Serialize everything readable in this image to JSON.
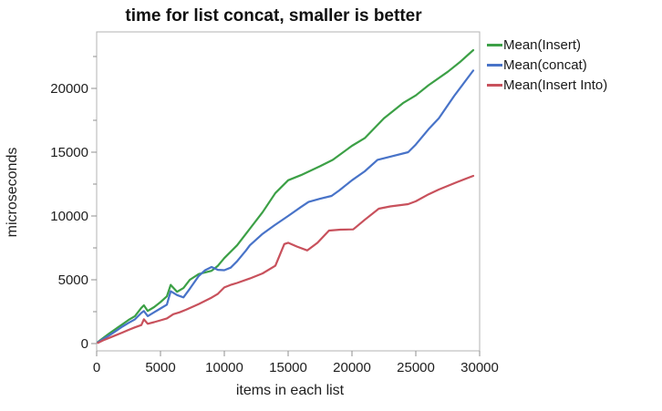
{
  "window": {
    "background": "#ffffff"
  },
  "chart_data": {
    "type": "line",
    "title": "time for list concat, smaller is better",
    "xlabel": "items in each list",
    "ylabel": "microseconds",
    "xlim": [
      0,
      30000
    ],
    "ylim": [
      0,
      24400
    ],
    "x_major_ticks": [
      0,
      5000,
      10000,
      15000,
      20000,
      25000,
      30000
    ],
    "y_major_ticks": [
      0,
      5000,
      10000,
      15000,
      20000
    ],
    "y_minor_ticks": [
      2500,
      7500,
      12500,
      17500,
      22500
    ],
    "grid": "off",
    "legend_position": "top-right-outside",
    "frame_color": "#b3b3b3",
    "tick_color": "#8f8f8f",
    "text_color": "#1e1e1e",
    "series": [
      {
        "name": "Mean(Insert)",
        "color": "#3CA046",
        "points": [
          [
            100,
            120
          ],
          [
            500,
            430
          ],
          [
            1000,
            800
          ],
          [
            1500,
            1150
          ],
          [
            2000,
            1500
          ],
          [
            2500,
            1850
          ],
          [
            3000,
            2150
          ],
          [
            3500,
            2800
          ],
          [
            3700,
            3000
          ],
          [
            4000,
            2560
          ],
          [
            4500,
            2860
          ],
          [
            5000,
            3250
          ],
          [
            5500,
            3700
          ],
          [
            5800,
            4600
          ],
          [
            6300,
            4060
          ],
          [
            6800,
            4350
          ],
          [
            7300,
            5000
          ],
          [
            8000,
            5450
          ],
          [
            9000,
            5700
          ],
          [
            9500,
            6100
          ],
          [
            10000,
            6700
          ],
          [
            11000,
            7700
          ],
          [
            12000,
            9000
          ],
          [
            13000,
            10300
          ],
          [
            14000,
            11800
          ],
          [
            15000,
            12800
          ],
          [
            16000,
            13200
          ],
          [
            17500,
            13900
          ],
          [
            18500,
            14400
          ],
          [
            20000,
            15500
          ],
          [
            21000,
            16100
          ],
          [
            22500,
            17650
          ],
          [
            24000,
            18850
          ],
          [
            25000,
            19450
          ],
          [
            26000,
            20250
          ],
          [
            27500,
            21300
          ],
          [
            28500,
            22100
          ],
          [
            29500,
            23000
          ]
        ]
      },
      {
        "name": "Mean(concat)",
        "color": "#4873C8",
        "points": [
          [
            100,
            100
          ],
          [
            500,
            350
          ],
          [
            1000,
            650
          ],
          [
            1500,
            980
          ],
          [
            2000,
            1320
          ],
          [
            2500,
            1620
          ],
          [
            3000,
            1900
          ],
          [
            3500,
            2400
          ],
          [
            3700,
            2550
          ],
          [
            4000,
            2150
          ],
          [
            4500,
            2450
          ],
          [
            5000,
            2750
          ],
          [
            5500,
            3050
          ],
          [
            5800,
            4100
          ],
          [
            6300,
            3800
          ],
          [
            6800,
            3620
          ],
          [
            7300,
            4300
          ],
          [
            8000,
            5300
          ],
          [
            8500,
            5750
          ],
          [
            9000,
            6000
          ],
          [
            9500,
            5780
          ],
          [
            10000,
            5750
          ],
          [
            10500,
            5950
          ],
          [
            11000,
            6450
          ],
          [
            11700,
            7300
          ],
          [
            12000,
            7700
          ],
          [
            13000,
            8600
          ],
          [
            13900,
            9250
          ],
          [
            15000,
            10000
          ],
          [
            16000,
            10700
          ],
          [
            16600,
            11100
          ],
          [
            17500,
            11350
          ],
          [
            18400,
            11570
          ],
          [
            19000,
            12000
          ],
          [
            20000,
            12800
          ],
          [
            21000,
            13500
          ],
          [
            22000,
            14400
          ],
          [
            23000,
            14650
          ],
          [
            24400,
            15000
          ],
          [
            25000,
            15600
          ],
          [
            26000,
            16800
          ],
          [
            26800,
            17650
          ],
          [
            28000,
            19400
          ],
          [
            29500,
            21400
          ]
        ]
      },
      {
        "name": "Mean(Insert Into)",
        "color": "#C8515C",
        "points": [
          [
            100,
            60
          ],
          [
            500,
            250
          ],
          [
            1000,
            450
          ],
          [
            1500,
            660
          ],
          [
            2000,
            860
          ],
          [
            2500,
            1070
          ],
          [
            3000,
            1270
          ],
          [
            3500,
            1450
          ],
          [
            3700,
            1900
          ],
          [
            4000,
            1550
          ],
          [
            4500,
            1680
          ],
          [
            5000,
            1820
          ],
          [
            5500,
            1970
          ],
          [
            6000,
            2300
          ],
          [
            6500,
            2450
          ],
          [
            7000,
            2650
          ],
          [
            7500,
            2870
          ],
          [
            8000,
            3100
          ],
          [
            8500,
            3350
          ],
          [
            9000,
            3600
          ],
          [
            9500,
            3900
          ],
          [
            10000,
            4400
          ],
          [
            10500,
            4600
          ],
          [
            11000,
            4750
          ],
          [
            12000,
            5100
          ],
          [
            13000,
            5500
          ],
          [
            14000,
            6100
          ],
          [
            14700,
            7800
          ],
          [
            15000,
            7900
          ],
          [
            15700,
            7600
          ],
          [
            16500,
            7300
          ],
          [
            17300,
            7900
          ],
          [
            18200,
            8860
          ],
          [
            19100,
            8930
          ],
          [
            20100,
            8950
          ],
          [
            21000,
            9700
          ],
          [
            22100,
            10570
          ],
          [
            23000,
            10750
          ],
          [
            24400,
            10930
          ],
          [
            25000,
            11150
          ],
          [
            26000,
            11700
          ],
          [
            26800,
            12070
          ],
          [
            28200,
            12640
          ],
          [
            29500,
            13140
          ]
        ]
      }
    ]
  }
}
